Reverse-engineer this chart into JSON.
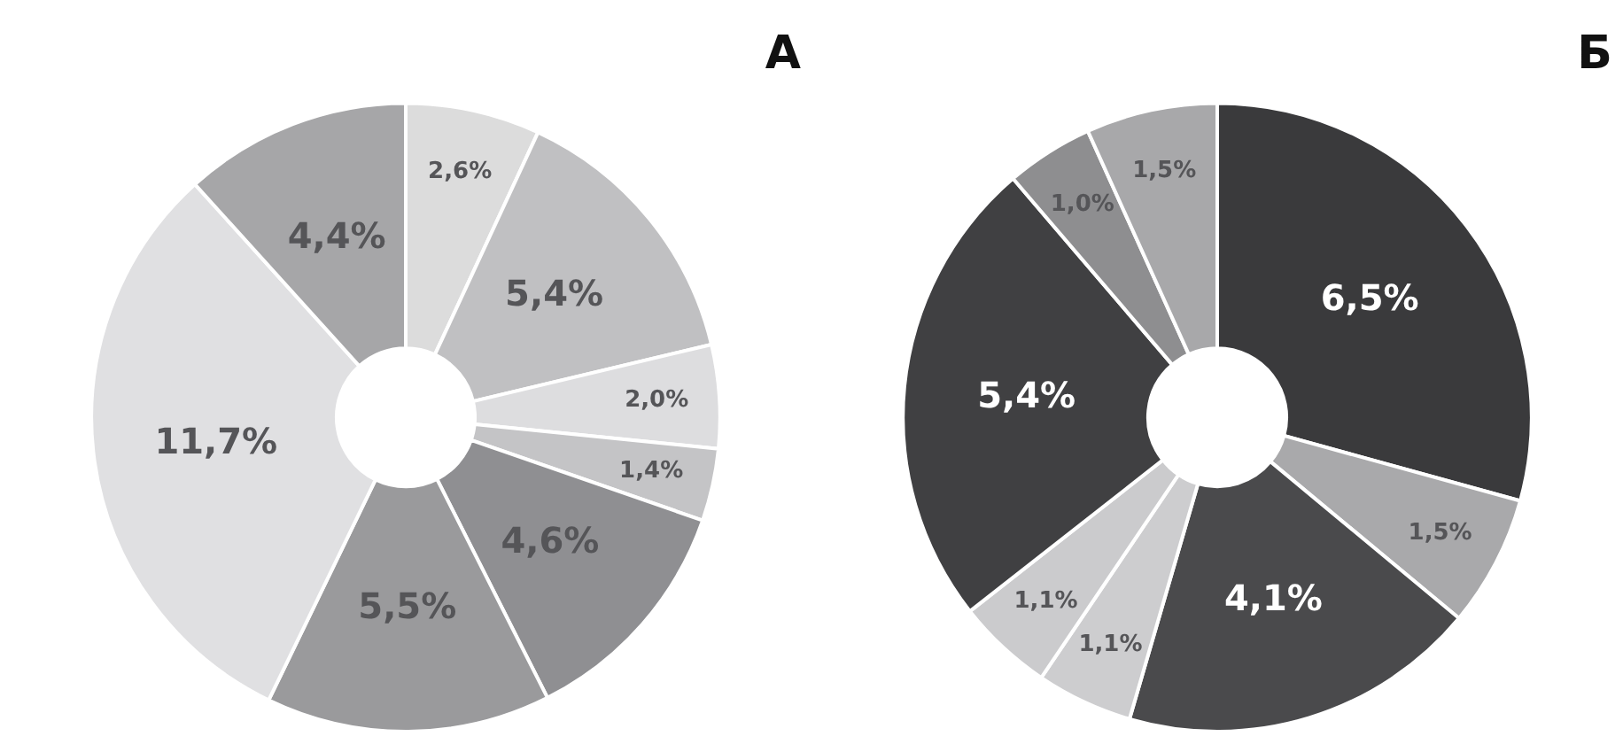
{
  "chart_data": [
    {
      "type": "donut",
      "title": "А",
      "categories": [
        null,
        null,
        null,
        null,
        null,
        null,
        null,
        null
      ],
      "values": [
        2.6,
        5.4,
        2.0,
        1.4,
        4.6,
        5.5,
        11.7,
        4.4
      ],
      "value_labels": [
        "2,6%",
        "5,4%",
        "2,0%",
        "1,4%",
        "4,6%",
        "5,5%",
        "11,7%",
        "4,4%"
      ],
      "colors": [
        "#dcdcdc",
        "#c0c0c2",
        "#dddddf",
        "#c4c4c6",
        "#8f8f92",
        "#9a9a9c",
        "#e0e0e2",
        "#a6a6a8"
      ]
    },
    {
      "type": "donut",
      "title": "Б",
      "categories": [
        null,
        null,
        null,
        null,
        null,
        null,
        null,
        null
      ],
      "values": [
        6.5,
        1.5,
        4.1,
        1.1,
        1.1,
        5.4,
        1.0,
        1.5
      ],
      "value_labels": [
        "6,5%",
        "1,5%",
        "4,1%",
        "1,1%",
        "1,1%",
        "5,4%",
        "1,0%",
        "1,5%"
      ],
      "colors": [
        "#3a3a3c",
        "#a9a9ab",
        "#4a4a4c",
        "#cdcdcf",
        "#cbcbcd",
        "#404042",
        "#8e8e90",
        "#a8a8aa"
      ]
    }
  ]
}
